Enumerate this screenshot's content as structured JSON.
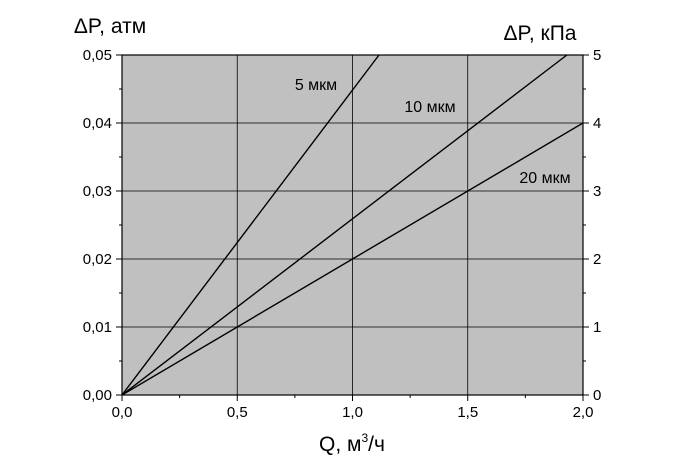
{
  "chart_data": {
    "type": "line",
    "title": "",
    "xlabel": "Q, м³/ч",
    "xlabel_base": "Q, м",
    "xlabel_sup": "3",
    "xlabel_tail": "/ч",
    "ylabel_left": "ΔP, атм",
    "ylabel_right": "ΔP, кПа",
    "xlim": [
      0,
      2.0
    ],
    "ylim_left": [
      0,
      0.05
    ],
    "ylim_right": [
      0,
      5
    ],
    "x_ticks": [
      "0,0",
      "0,5",
      "1,0",
      "1,5",
      "2,0"
    ],
    "y_left_ticks": [
      "0,00",
      "0,01",
      "0,02",
      "0,03",
      "0,04",
      "0,05"
    ],
    "y_right_ticks": [
      "0",
      "1",
      "2",
      "3",
      "4",
      "5"
    ],
    "grid": true,
    "plot_background": "#c0c0c0",
    "line_color": "#000000",
    "series": [
      {
        "name": "5 мкм",
        "x": [
          0,
          1.115
        ],
        "y": [
          0,
          0.05
        ]
      },
      {
        "name": "10 мкм",
        "x": [
          0,
          1.93
        ],
        "y": [
          0,
          0.05
        ]
      },
      {
        "name": "20 мкм",
        "x": [
          0,
          2.0
        ],
        "y": [
          0,
          0.04
        ]
      }
    ]
  }
}
